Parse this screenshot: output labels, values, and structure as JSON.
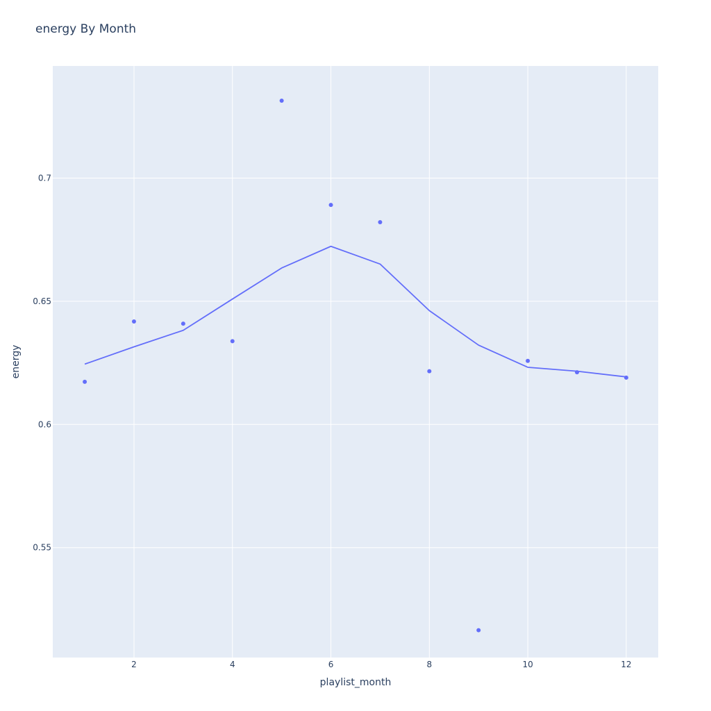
{
  "chart_data": {
    "type": "scatter",
    "title": "energy By Month",
    "xlabel": "playlist_month",
    "ylabel": "energy",
    "xlim": [
      0.35,
      12.65
    ],
    "ylim": [
      0.5054,
      0.7455
    ],
    "x_ticks": [
      2,
      4,
      6,
      8,
      10,
      12
    ],
    "x_tick_labels": [
      "2",
      "4",
      "6",
      "8",
      "10",
      "12"
    ],
    "y_ticks": [
      0.55,
      0.6,
      0.65,
      0.7
    ],
    "y_tick_labels": [
      "0.55",
      "0.6",
      "0.65",
      "0.7"
    ],
    "grid": true,
    "series": [
      {
        "mode": "markers",
        "color": "#636efa",
        "x": [
          1,
          2,
          3,
          4,
          5,
          6,
          7,
          8,
          9,
          10,
          11,
          12
        ],
        "y": [
          0.6173,
          0.6418,
          0.6409,
          0.6338,
          0.7314,
          0.6891,
          0.6821,
          0.6216,
          0.5165,
          0.6258,
          0.6212,
          0.619
        ]
      },
      {
        "mode": "lines",
        "color": "#636efa",
        "x": [
          1,
          2,
          3,
          4,
          5,
          6,
          7,
          8,
          9,
          10,
          11,
          12
        ],
        "y": [
          0.6245,
          0.6315,
          0.6382,
          0.6509,
          0.6635,
          0.6723,
          0.6651,
          0.6462,
          0.6322,
          0.6232,
          0.6216,
          0.6193
        ]
      }
    ],
    "colors": {
      "plot_background": "#e5ecf6",
      "grid": "#ffffff",
      "text": "#2a3f5f"
    }
  }
}
